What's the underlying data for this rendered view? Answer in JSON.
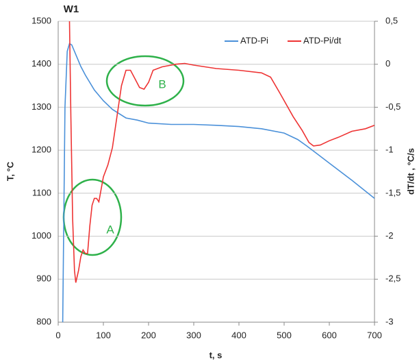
{
  "chart_data": {
    "type": "line",
    "title": "W1",
    "x_label": "t, s",
    "y_label": "T, °C",
    "y2_label": "dT/dt , °C/s",
    "xlim": [
      0,
      700
    ],
    "xticks": [
      0,
      100,
      200,
      300,
      400,
      500,
      600,
      700
    ],
    "ylim": [
      800,
      1500
    ],
    "yticks": [
      800,
      900,
      1000,
      1100,
      1200,
      1300,
      1400,
      1500
    ],
    "y2lim": [
      -3,
      0.5
    ],
    "y2ticks": [
      {
        "value": 0.5,
        "label": "0,5"
      },
      0,
      {
        "value": -0.5,
        "label": "-0,5"
      },
      -1,
      {
        "value": -1.5,
        "label": "-1,5"
      },
      -2,
      {
        "value": -2.5,
        "label": "-2,5"
      },
      -3
    ],
    "grid": true,
    "annotations": [
      "A",
      "B"
    ],
    "series": [
      {
        "name": "ATD-Pi",
        "color": "#4a90d9",
        "x": [
          10,
          15,
          20,
          25,
          30,
          40,
          50,
          60,
          80,
          100,
          120,
          150,
          175,
          200,
          250,
          300,
          350,
          400,
          450,
          500,
          530,
          550,
          575,
          600,
          650,
          700
        ],
        "values": [
          800,
          1300,
          1430,
          1448,
          1445,
          1420,
          1395,
          1375,
          1340,
          1315,
          1295,
          1275,
          1270,
          1263,
          1260,
          1260,
          1258,
          1255,
          1250,
          1240,
          1225,
          1210,
          1190,
          1170,
          1130,
          1088
        ]
      },
      {
        "name": "ATD-Pi/dt",
        "color": "#ee3333",
        "axis": "y2",
        "x": [
          25,
          28,
          32,
          36,
          39,
          45,
          50,
          55,
          60,
          65,
          70,
          75,
          80,
          85,
          90,
          100,
          110,
          120,
          130,
          140,
          150,
          160,
          170,
          180,
          190,
          200,
          210,
          230,
          260,
          280,
          300,
          350,
          400,
          450,
          470,
          490,
          520,
          540,
          555,
          565,
          580,
          600,
          620,
          650,
          680,
          700
        ],
        "values": [
          0.5,
          -0.6,
          -1.8,
          -2.4,
          -2.54,
          -2.4,
          -2.24,
          -2.16,
          -2.2,
          -2.2,
          -1.88,
          -1.64,
          -1.56,
          -1.56,
          -1.6,
          -1.31,
          -1.17,
          -0.97,
          -0.61,
          -0.25,
          -0.07,
          -0.07,
          -0.17,
          -0.27,
          -0.29,
          -0.21,
          -0.07,
          -0.03,
          0.0,
          0.01,
          -0.01,
          -0.05,
          -0.07,
          -0.1,
          -0.15,
          -0.33,
          -0.61,
          -0.77,
          -0.91,
          -0.95,
          -0.94,
          -0.89,
          -0.85,
          -0.78,
          -0.75,
          -0.71
        ]
      }
    ]
  }
}
